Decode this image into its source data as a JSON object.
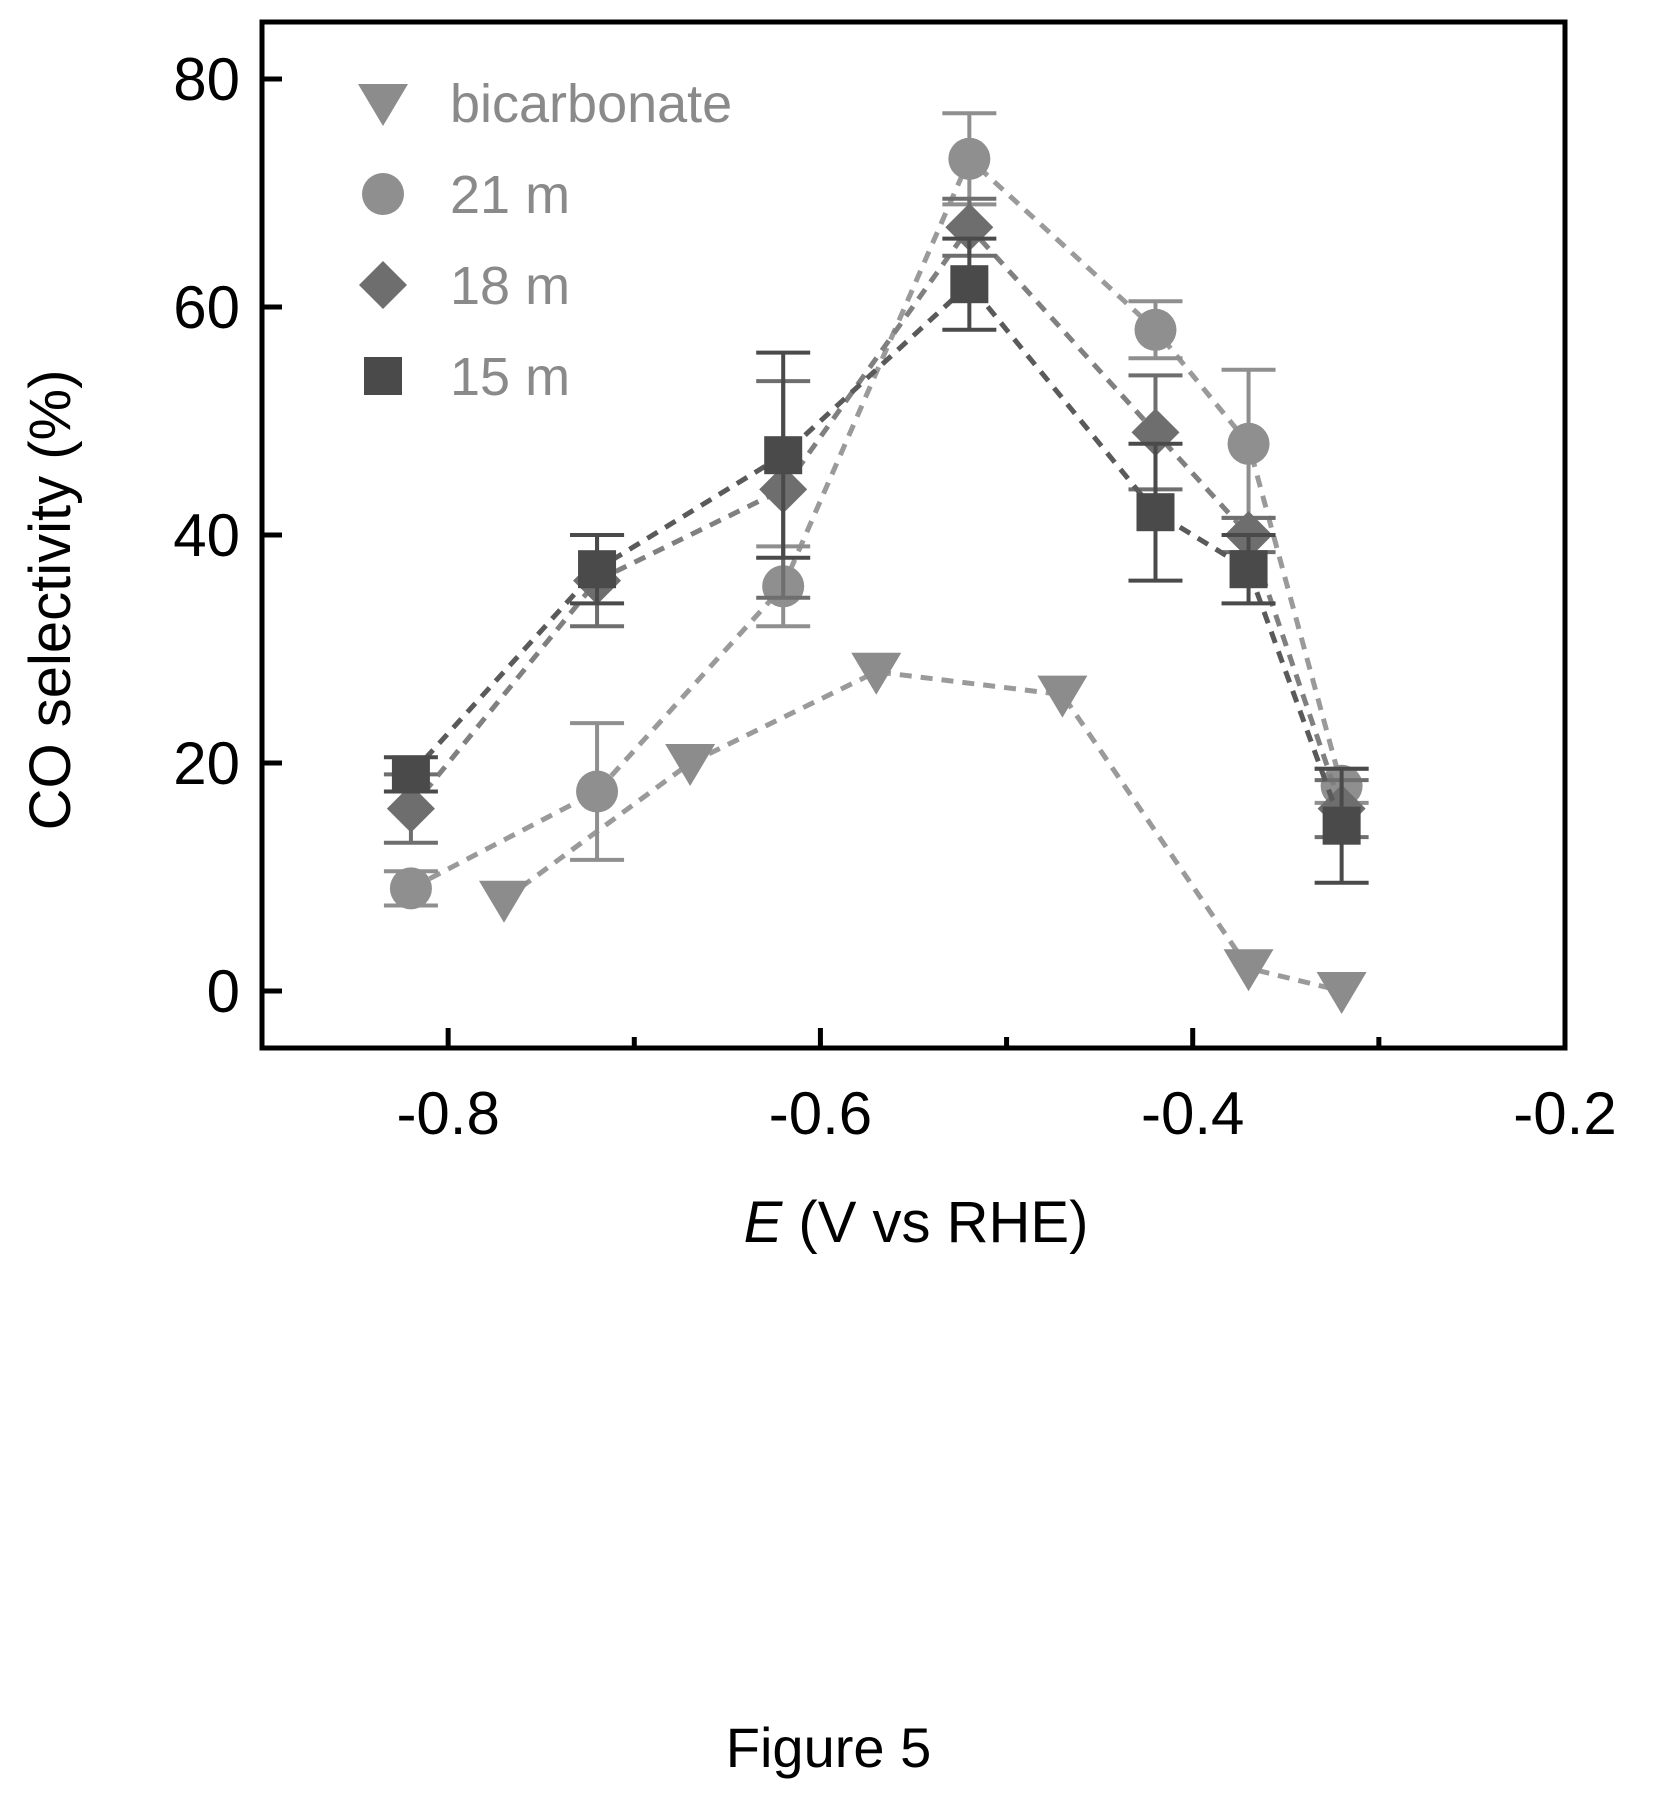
{
  "figure": {
    "caption": "Figure 5"
  },
  "chart_data": {
    "type": "scatter",
    "xlabel_italic": "E",
    "xlabel_rest": " (V vs RHE)",
    "ylabel": "CO selectivity (%)",
    "xlim": [
      -0.9,
      -0.2
    ],
    "ylim": [
      -5,
      85
    ],
    "x_ticks": [
      -0.8,
      -0.6,
      -0.4,
      -0.2
    ],
    "x_tick_labels": [
      "-0.8",
      "-0.6",
      "-0.4",
      "-0.2"
    ],
    "x_minor_ticks": [
      -0.7,
      -0.5,
      -0.3
    ],
    "y_ticks": [
      0,
      20,
      40,
      60,
      80
    ],
    "y_tick_labels": [
      "0",
      "20",
      "40",
      "60",
      "80"
    ],
    "legend_position": "top-left",
    "series": [
      {
        "name": "bicarbonate",
        "marker": "triangle-down",
        "color": "#8c8c8c",
        "line": "#9a9a9a",
        "x": [
          -0.77,
          -0.67,
          -0.57,
          -0.47,
          -0.37,
          -0.32
        ],
        "y": [
          8,
          20,
          28,
          26,
          2,
          0
        ],
        "err": [
          0,
          0,
          0,
          0,
          0,
          0
        ]
      },
      {
        "name": "21 m",
        "marker": "circle",
        "color": "#8f8f8f",
        "line": "#9a9a9a",
        "x": [
          -0.82,
          -0.72,
          -0.62,
          -0.52,
          -0.42,
          -0.37,
          -0.32
        ],
        "y": [
          9,
          17.5,
          35.5,
          73,
          58,
          48,
          18
        ],
        "err": [
          1.5,
          6,
          3.5,
          4,
          2.5,
          6.5,
          1.5
        ]
      },
      {
        "name": "18 m",
        "marker": "diamond",
        "color": "#6e6e6e",
        "line": "#808080",
        "x": [
          -0.82,
          -0.72,
          -0.62,
          -0.52,
          -0.42,
          -0.37,
          -0.32
        ],
        "y": [
          16,
          36,
          44,
          67,
          49,
          40,
          16
        ],
        "err": [
          3,
          4,
          9.5,
          2.5,
          5,
          1.5,
          2.5
        ]
      },
      {
        "name": "15 m",
        "marker": "square",
        "color": "#4a4a4a",
        "line": "#5a5a5a",
        "x": [
          -0.82,
          -0.72,
          -0.62,
          -0.52,
          -0.42,
          -0.37,
          -0.32
        ],
        "y": [
          19,
          37,
          47,
          62,
          42,
          37,
          14.5
        ],
        "err": [
          1.5,
          3,
          9,
          4,
          6,
          3,
          5
        ]
      }
    ]
  }
}
